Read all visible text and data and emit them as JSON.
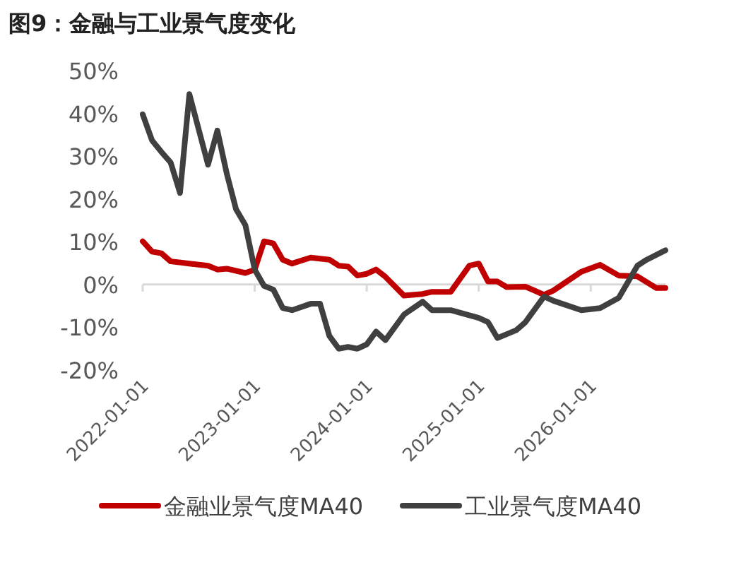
{
  "chart_data": {
    "type": "line",
    "title": "图9：金融与工业景气度变化",
    "xlim": [
      "2022-01",
      "2026-09"
    ],
    "xticks": [
      "2022-01-01",
      "2023-01-01",
      "2024-01-01",
      "2025-01-01",
      "2026-01-01"
    ],
    "ylim": [
      -20,
      50
    ],
    "yticks": [
      {
        "value": -20,
        "label": "-20%"
      },
      {
        "value": -10,
        "label": "-10%"
      },
      {
        "value": 0,
        "label": "0%"
      },
      {
        "value": 10,
        "label": "10%"
      },
      {
        "value": 20,
        "label": "20%"
      },
      {
        "value": 30,
        "label": "30%"
      },
      {
        "value": 40,
        "label": "40%"
      },
      {
        "value": 50,
        "label": "50%"
      }
    ],
    "legend": "bottom",
    "marker": "none",
    "line_style": "solid",
    "series": [
      {
        "name": "金融业景气度MA40",
        "color": "#c00000",
        "x": [
          "2022-01",
          "2022-02",
          "2022-03",
          "2022-04",
          "2022-06",
          "2022-08",
          "2022-09",
          "2022-10",
          "2022-12",
          "2023-01",
          "2023-02",
          "2023-03",
          "2023-04",
          "2023-05",
          "2023-07",
          "2023-09",
          "2023-10",
          "2023-11",
          "2023-12",
          "2024-01",
          "2024-02",
          "2024-03",
          "2024-05",
          "2024-07",
          "2024-08",
          "2024-10",
          "2024-12",
          "2025-01",
          "2025-02",
          "2025-03",
          "2025-04",
          "2025-06",
          "2025-08",
          "2025-09",
          "2025-12",
          "2026-02",
          "2026-04",
          "2026-06",
          "2026-08",
          "2026-09"
        ],
        "values": [
          10.1,
          7.7,
          7.3,
          5.4,
          4.9,
          4.4,
          3.5,
          3.7,
          2.7,
          3.5,
          10.1,
          9.6,
          5.8,
          4.9,
          6.3,
          5.8,
          4.4,
          4.2,
          2.1,
          2.5,
          3.5,
          1.8,
          -2.6,
          -2.2,
          -1.7,
          -1.7,
          4.4,
          4.9,
          0.7,
          0.7,
          -0.6,
          -0.5,
          -2.4,
          -1.4,
          3.0,
          4.6,
          2.1,
          1.9,
          -0.8,
          -0.8
        ]
      },
      {
        "name": "工业景气度MA40",
        "color": "#404040",
        "x": [
          "2022-01",
          "2022-02",
          "2022-03",
          "2022-04",
          "2022-05",
          "2022-06",
          "2022-08",
          "2022-09",
          "2022-10",
          "2022-11",
          "2022-12",
          "2023-01",
          "2023-02",
          "2023-03",
          "2023-04",
          "2023-05",
          "2023-07",
          "2023-08",
          "2023-09",
          "2023-10",
          "2023-11",
          "2023-12",
          "2024-01",
          "2024-02",
          "2024-03",
          "2024-05",
          "2024-07",
          "2024-08",
          "2024-10",
          "2025-01",
          "2025-02",
          "2025-03",
          "2025-05",
          "2025-06",
          "2025-08",
          "2025-09",
          "2025-12",
          "2026-02",
          "2026-04",
          "2026-06",
          "2026-07",
          "2026-09"
        ],
        "values": [
          39.8,
          33.7,
          31,
          28.5,
          21.4,
          44.5,
          28,
          36,
          26,
          17.6,
          13.9,
          3.5,
          -0.3,
          -1.2,
          -5.5,
          -6,
          -4.5,
          -4.5,
          -12,
          -15,
          -14.6,
          -15,
          -14,
          -11,
          -13,
          -7,
          -4,
          -6,
          -6,
          -7.8,
          -8.8,
          -12.5,
          -10.7,
          -8.8,
          -2.8,
          -3.8,
          -6,
          -5.5,
          -3.1,
          4.4,
          5.8,
          8.0
        ]
      }
    ]
  }
}
